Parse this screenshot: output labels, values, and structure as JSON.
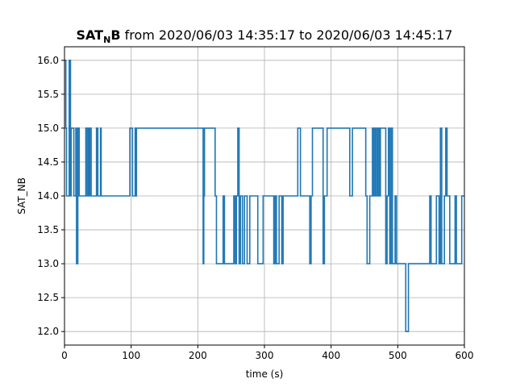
{
  "chart_data": {
    "type": "line",
    "drawstyle": "steps-post",
    "title": {
      "bold_main": "SAT",
      "bold_sub": "N",
      "bold_tail": "B",
      "rest": " from 2020/06/03 14:35:17 to 2020/06/03 14:45:17"
    },
    "xlabel": "time (s)",
    "ylabel": "SAT_NB",
    "xlim": [
      0,
      600
    ],
    "ylim": [
      11.8,
      16.2
    ],
    "xticks": [
      0,
      100,
      200,
      300,
      400,
      500,
      600
    ],
    "xtick_labels": [
      "0",
      "100",
      "200",
      "300",
      "400",
      "500",
      "600"
    ],
    "yticks": [
      12.0,
      12.5,
      13.0,
      13.5,
      14.0,
      14.5,
      15.0,
      15.5,
      16.0
    ],
    "ytick_labels": [
      "12.0",
      "12.5",
      "13.0",
      "13.5",
      "14.0",
      "14.5",
      "15.0",
      "15.5",
      "16.0"
    ],
    "grid": true,
    "line_color": "#1f77b4",
    "series": [
      {
        "x": [
          0,
          2,
          3,
          7,
          9,
          10,
          14,
          17,
          18,
          20,
          22,
          32,
          34,
          36,
          37,
          38,
          40,
          48,
          50,
          54,
          55,
          98,
          102,
          106,
          107,
          108,
          208,
          209,
          210,
          226,
          228,
          238,
          240,
          254,
          256,
          258,
          260,
          262,
          264,
          267,
          270,
          274,
          278,
          290,
          298,
          314,
          316,
          318,
          322,
          326,
          328,
          350,
          354,
          368,
          370,
          372,
          388,
          390,
          394,
          428,
          432,
          452,
          454,
          458,
          462,
          464,
          466,
          468,
          470,
          472,
          474,
          482,
          484,
          486,
          488,
          490,
          492,
          496,
          498,
          512,
          516,
          548,
          550,
          558,
          562,
          564,
          566,
          570,
          572,
          574,
          578,
          586,
          588,
          596,
          598,
          600
        ],
        "y": [
          16,
          15,
          14,
          16,
          14,
          15,
          14,
          15,
          13,
          15,
          14,
          15,
          14,
          15,
          14,
          15,
          14,
          15,
          14,
          15,
          14,
          15,
          14,
          15,
          14,
          15,
          13,
          14,
          15,
          14,
          13,
          14,
          13,
          14,
          13,
          14,
          15,
          13,
          14,
          13,
          14,
          13,
          14,
          13,
          14,
          13,
          14,
          13,
          14,
          13,
          14,
          15,
          14,
          13,
          14,
          15,
          13,
          14,
          15,
          14,
          15,
          14,
          13,
          14,
          15,
          14,
          15,
          14,
          15,
          14,
          15,
          13,
          14,
          15,
          13,
          15,
          13,
          14,
          13,
          12,
          13,
          14,
          13,
          14,
          13,
          15,
          13,
          14,
          15,
          14,
          13,
          14,
          13,
          14,
          14,
          14
        ]
      }
    ]
  }
}
